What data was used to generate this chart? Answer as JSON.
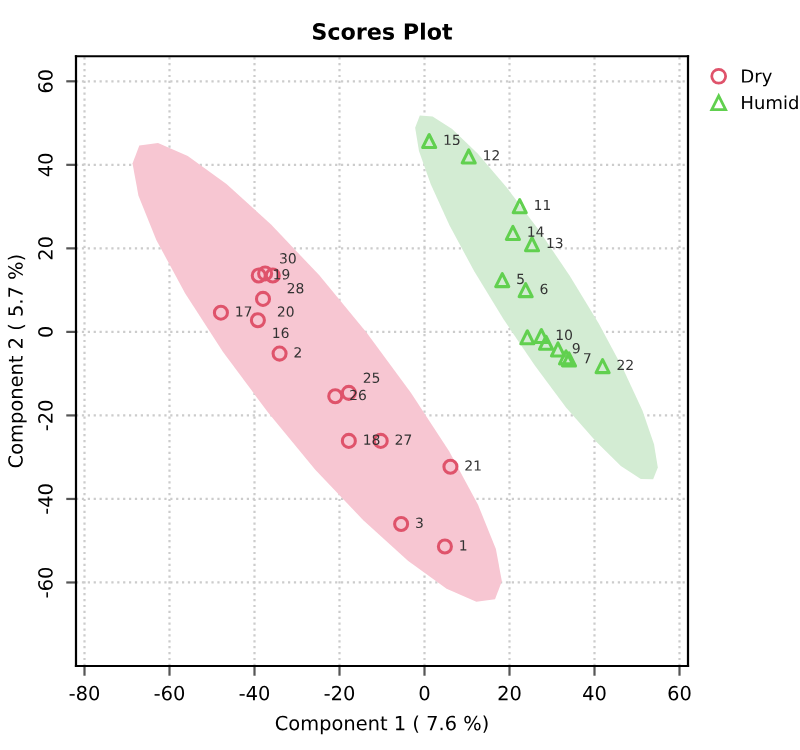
{
  "chart_data": {
    "type": "scatter",
    "title": "Scores Plot",
    "xlabel": "Component 1 ( 7.6 %)",
    "ylabel": "Component 2 ( 5.7 %)",
    "xlim": [
      -82,
      62
    ],
    "ylim": [
      -80,
      66
    ],
    "xticks": [
      -80,
      -60,
      -40,
      -20,
      0,
      20,
      40,
      60
    ],
    "yticks": [
      -60,
      -40,
      -20,
      0,
      20,
      40,
      60
    ],
    "grid": true,
    "legend": "top right",
    "series": [
      {
        "type": "area",
        "color": "#f7c6d2",
        "x": [
          16.6,
          18.2,
          16.8,
          12.6,
          5.8,
          -3.2,
          -13.6,
          -24.8,
          -36.1,
          -46.6,
          -55.7,
          -62.7,
          -67.1,
          -68.7,
          -67.3,
          -63.1,
          -56.3,
          -47.4,
          -36.9,
          -25.7,
          -14.4,
          -3.9,
          5.2,
          12.2
        ],
        "values": [
          -64.0,
          -59.7,
          -52.0,
          -41.4,
          -28.6,
          -14.6,
          -0.2,
          13.6,
          25.7,
          35.4,
          42.1,
          45.2,
          44.6,
          40.3,
          32.6,
          22.0,
          9.2,
          -4.8,
          -19.2,
          -33.0,
          -45.1,
          -54.8,
          -61.5,
          -64.6
        ]
      },
      {
        "type": "area",
        "color": "#d3ecd3",
        "x": [
          53.8,
          54.9,
          54.0,
          51.3,
          46.8,
          41.0,
          34.2,
          26.8,
          19.4,
          12.5,
          6.5,
          1.9,
          -1.1,
          -2.2,
          -1.3,
          1.5,
          5.9,
          11.7,
          18.6,
          26.0,
          33.3,
          40.3,
          46.2,
          50.9
        ],
        "values": [
          -35.3,
          -32.5,
          -26.9,
          -18.9,
          -9.0,
          2.0,
          13.4,
          24.5,
          34.5,
          42.7,
          48.6,
          51.6,
          51.8,
          48.9,
          43.3,
          35.3,
          25.5,
          14.5,
          3.0,
          -8.1,
          -18.1,
          -26.2,
          -32.1,
          -35.2
        ]
      },
      {
        "type": "scatter",
        "name": "Dry",
        "color": "#df536b",
        "marker": "circle",
        "x": [
          -21.0,
          -17.8,
          -17.8,
          -10.3,
          6.1,
          -5.5,
          4.8,
          -39.0,
          -37.5,
          -35.7,
          -38.0,
          -47.9,
          -39.2,
          -34.1
        ],
        "values": [
          -15.4,
          -14.6,
          -26.1,
          -26.1,
          -32.3,
          -46.0,
          -51.4,
          13.5,
          14.0,
          13.5,
          7.9,
          4.6,
          2.8,
          -5.2
        ]
      },
      {
        "type": "scatter",
        "name": "Humid",
        "color": "#61d04f",
        "marker": "triangle",
        "x": [
          1.1,
          10.4,
          22.4,
          20.8,
          25.3,
          18.3,
          23.8,
          24.2,
          27.5,
          28.6,
          31.4,
          33.3,
          34.0,
          41.9
        ],
        "values": [
          45.7,
          42.0,
          30.1,
          23.7,
          21.0,
          12.4,
          10.0,
          -1.3,
          -1.0,
          -2.6,
          -4.2,
          -6.1,
          -6.6,
          -8.2
        ]
      }
    ],
    "annotations": [
      {
        "text": "26",
        "x": -21.0,
        "y": -15.4
      },
      {
        "text": "25",
        "x": -17.8,
        "y": -14.6
      },
      {
        "text": "18",
        "x": -17.8,
        "y": -26.1
      },
      {
        "text": "27",
        "x": -10.3,
        "y": -26.1
      },
      {
        "text": "21",
        "x": 6.1,
        "y": -32.3
      },
      {
        "text": "3",
        "x": -5.5,
        "y": -46.0
      },
      {
        "text": "1",
        "x": 4.8,
        "y": -51.4
      },
      {
        "text": "19",
        "x": -39.0,
        "y": 13.5
      },
      {
        "text": "30",
        "x": -37.5,
        "y": 14.0
      },
      {
        "text": "28",
        "x": -35.7,
        "y": 13.5
      },
      {
        "text": "20",
        "x": -38.0,
        "y": 7.9
      },
      {
        "text": "17",
        "x": -47.9,
        "y": 4.6
      },
      {
        "text": "16",
        "x": -39.2,
        "y": 2.8
      },
      {
        "text": "2",
        "x": -34.1,
        "y": -5.2
      },
      {
        "text": "15",
        "x": 1.1,
        "y": 45.7
      },
      {
        "text": "12",
        "x": 10.4,
        "y": 42.0
      },
      {
        "text": "11",
        "x": 22.4,
        "y": 30.1
      },
      {
        "text": "14",
        "x": 20.8,
        "y": 23.7
      },
      {
        "text": "13",
        "x": 25.3,
        "y": 21.0
      },
      {
        "text": "5",
        "x": 18.3,
        "y": 12.4
      },
      {
        "text": "6",
        "x": 23.8,
        "y": 10.0
      },
      {
        "text": "10",
        "x": 27.5,
        "y": -1.0
      },
      {
        "text": "9",
        "x": 31.4,
        "y": -4.2
      },
      {
        "text": "7",
        "x": 34.0,
        "y": -6.6
      },
      {
        "text": "22",
        "x": 41.9,
        "y": -8.2
      }
    ]
  }
}
